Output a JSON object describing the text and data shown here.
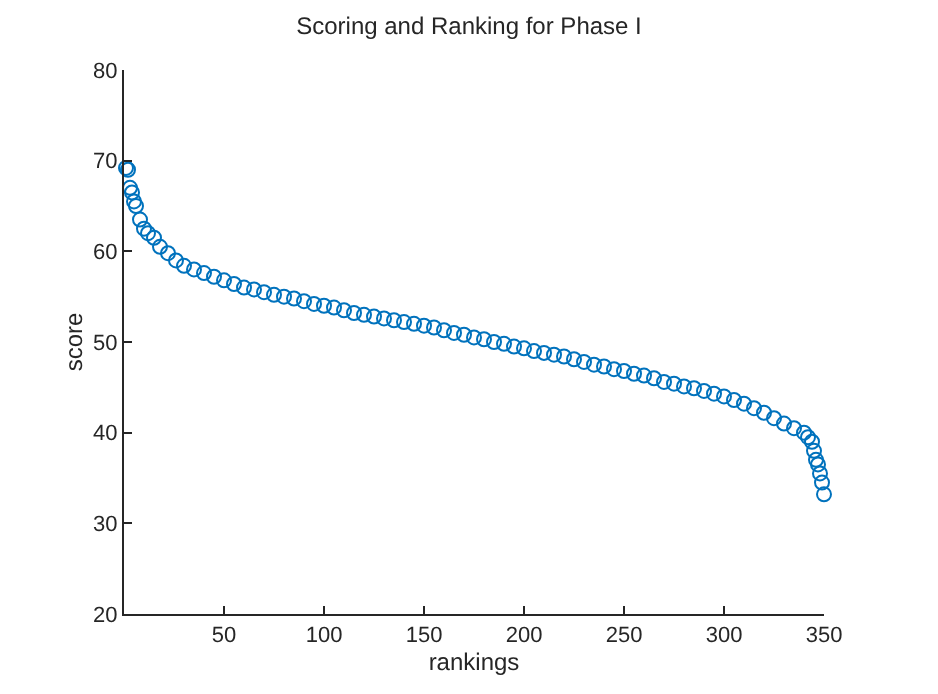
{
  "chart_data": {
    "type": "scatter",
    "title": "Scoring and Ranking for Phase I",
    "xlabel": "rankings",
    "ylabel": "score",
    "x": [
      1,
      2,
      3,
      4,
      5,
      6,
      8,
      10,
      12,
      15,
      18,
      22,
      26,
      30,
      35,
      40,
      45,
      50,
      55,
      60,
      65,
      70,
      75,
      80,
      85,
      90,
      95,
      100,
      105,
      110,
      115,
      120,
      125,
      130,
      135,
      140,
      145,
      150,
      155,
      160,
      165,
      170,
      175,
      180,
      185,
      190,
      195,
      200,
      205,
      210,
      215,
      220,
      225,
      230,
      235,
      240,
      245,
      250,
      255,
      260,
      265,
      270,
      275,
      280,
      285,
      290,
      295,
      300,
      305,
      310,
      315,
      320,
      325,
      330,
      335,
      340,
      342,
      344,
      345,
      346,
      347,
      348,
      349,
      350
    ],
    "series": [
      {
        "color": "#0072bd",
        "values": [
          69.2,
          69,
          67,
          66.5,
          65.5,
          65,
          63.5,
          62.5,
          62,
          61.5,
          60.5,
          59.8,
          59,
          58.4,
          58,
          57.6,
          57.2,
          56.8,
          56.4,
          56,
          55.8,
          55.5,
          55.2,
          55,
          54.8,
          54.5,
          54.2,
          54,
          53.8,
          53.5,
          53.2,
          53,
          52.8,
          52.6,
          52.4,
          52.2,
          52,
          51.8,
          51.6,
          51.3,
          51,
          50.8,
          50.5,
          50.3,
          50,
          49.8,
          49.5,
          49.3,
          49,
          48.8,
          48.6,
          48.4,
          48.1,
          47.8,
          47.5,
          47.3,
          47,
          46.8,
          46.5,
          46.3,
          46,
          45.6,
          45.4,
          45.1,
          44.9,
          44.6,
          44.3,
          44,
          43.6,
          43.2,
          42.7,
          42.2,
          41.6,
          41,
          40.5,
          40,
          39.5,
          39,
          38,
          37,
          36.5,
          35.5,
          34.5,
          33.2
        ]
      }
    ],
    "marker": "circle",
    "xlim": [
      0,
      350
    ],
    "xticks": [
      50,
      100,
      150,
      200,
      250,
      300,
      350
    ],
    "ylim": [
      20,
      80
    ],
    "yticks": [
      20,
      30,
      40,
      50,
      60,
      70,
      80
    ]
  }
}
